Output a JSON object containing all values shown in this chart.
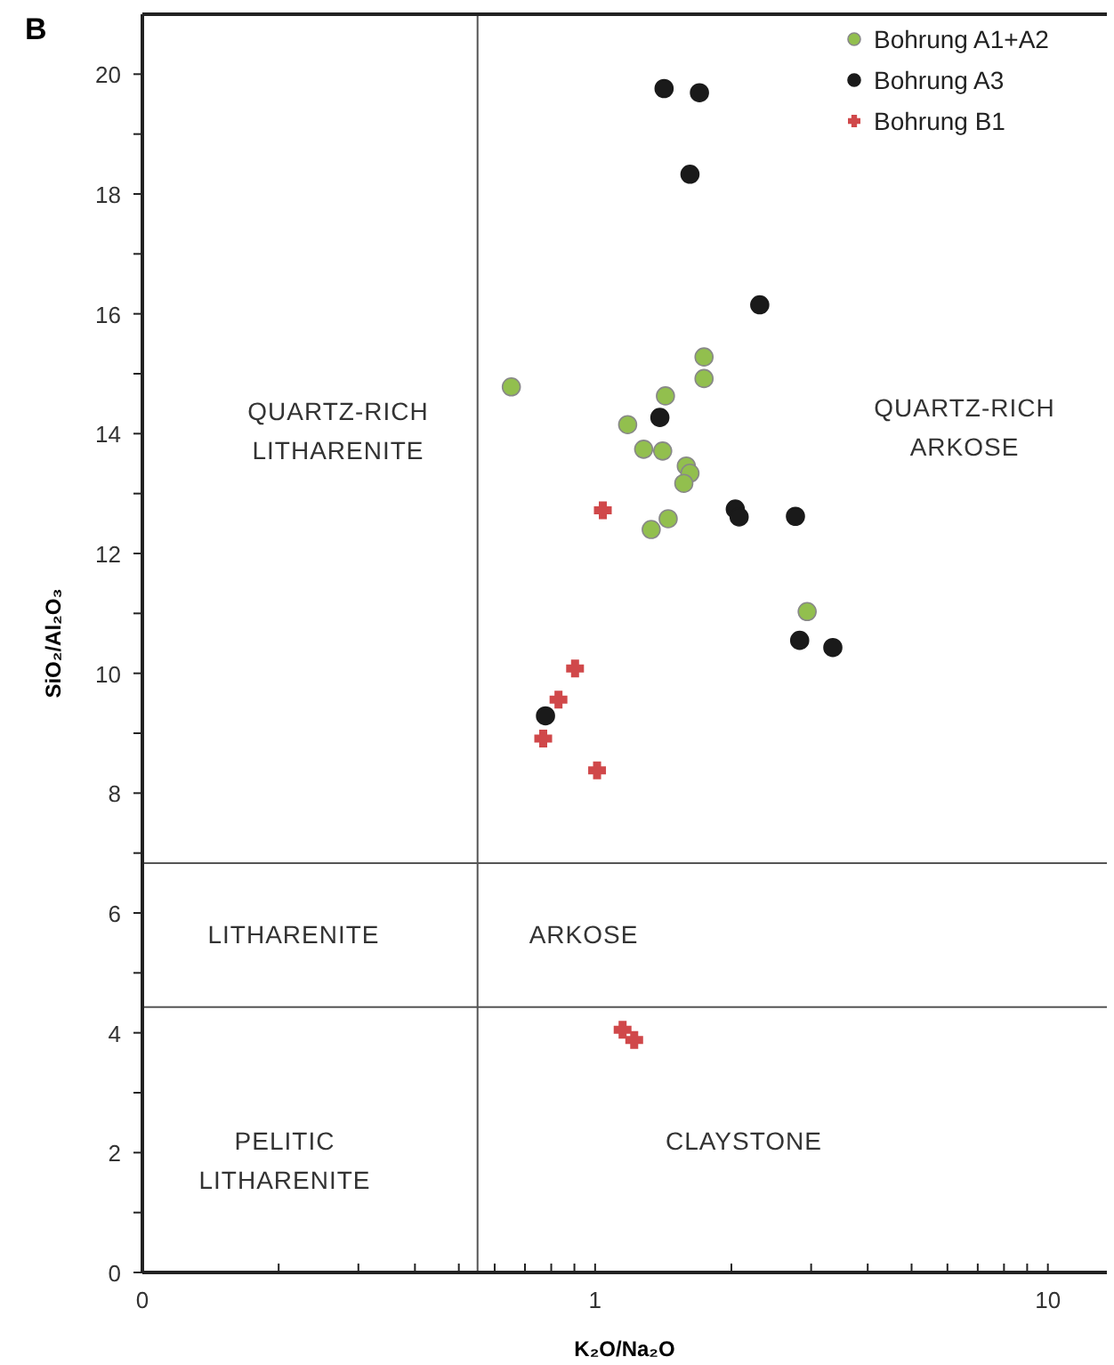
{
  "chart_data": {
    "type": "scatter",
    "title": "B",
    "xlabel": "K₂O/Na₂O",
    "ylabel": "SiO₂/Al₂O₃",
    "log": "x",
    "xlim": [
      0.1,
      13.5
    ],
    "ylim": [
      0,
      21
    ],
    "xticks": [
      {
        "value": 0.1,
        "label": "0"
      },
      {
        "value": 0.2,
        "label": null
      },
      {
        "value": 0.3,
        "label": null
      },
      {
        "value": 0.4,
        "label": null
      },
      {
        "value": 0.5,
        "label": null
      },
      {
        "value": 0.6,
        "label": null
      },
      {
        "value": 0.7,
        "label": null
      },
      {
        "value": 0.8,
        "label": null
      },
      {
        "value": 0.9,
        "label": null
      },
      1,
      {
        "value": 2,
        "label": null
      },
      {
        "value": 3,
        "label": null
      },
      {
        "value": 4,
        "label": null
      },
      {
        "value": 5,
        "label": null
      },
      {
        "value": 6,
        "label": null
      },
      {
        "value": 7,
        "label": null
      },
      {
        "value": 8,
        "label": null
      },
      {
        "value": 9,
        "label": null
      },
      10
    ],
    "yticks": [
      0,
      {
        "value": 1,
        "label": null
      },
      2,
      {
        "value": 3,
        "label": null
      },
      4,
      {
        "value": 5,
        "label": null
      },
      6,
      {
        "value": 7,
        "label": null
      },
      8,
      {
        "value": 9,
        "label": null
      },
      10,
      {
        "value": 11,
        "label": null
      },
      12,
      {
        "value": 13,
        "label": null
      },
      14,
      {
        "value": 15,
        "label": null
      },
      16,
      {
        "value": 17,
        "label": null
      },
      18,
      {
        "value": 19,
        "label": null
      },
      20
    ],
    "grid": false,
    "legend": "top right",
    "ref_lines": [
      {
        "axis": "x",
        "value": 0.55,
        "color": "#555555"
      },
      {
        "axis": "y",
        "value": 6.83,
        "color": "#555555"
      },
      {
        "axis": "y",
        "value": 4.43,
        "color": "#555555"
      }
    ],
    "annotations": [
      "QUARTZ-RICH\nLITHARENITE",
      "QUARTZ-RICH\nARKOSE",
      "LITHARENITE",
      "ARKOSE",
      "PELITIC\nLITHARENITE",
      "CLAYSTONE"
    ],
    "series": [
      {
        "name": "Bohrung A1+A2",
        "color": "#92bf4e",
        "marker": "circle",
        "x": [
          0.653,
          1.74,
          1.74,
          1.43,
          1.18,
          1.28,
          1.41,
          1.59,
          1.62,
          1.57,
          1.45,
          1.33,
          2.94
        ],
        "values": [
          14.78,
          15.28,
          14.92,
          14.63,
          14.15,
          13.74,
          13.71,
          13.46,
          13.34,
          13.17,
          12.58,
          12.4,
          11.03
        ]
      },
      {
        "name": "Bohrung A3",
        "color": "#1a1a1a",
        "marker": "circle",
        "x": [
          1.42,
          1.7,
          1.62,
          2.31,
          1.39,
          2.04,
          2.08,
          2.77,
          2.83,
          3.35,
          0.777
        ],
        "values": [
          19.76,
          19.69,
          18.33,
          16.15,
          14.27,
          12.74,
          12.61,
          12.62,
          10.55,
          10.43,
          9.29
        ]
      },
      {
        "name": "Bohrung B1",
        "color": "#d0484a",
        "marker": "cross",
        "x": [
          1.04,
          0.903,
          0.83,
          0.768,
          1.01,
          1.15,
          1.22
        ],
        "values": [
          12.72,
          10.08,
          9.56,
          8.91,
          8.38,
          4.05,
          3.88
        ]
      }
    ]
  }
}
